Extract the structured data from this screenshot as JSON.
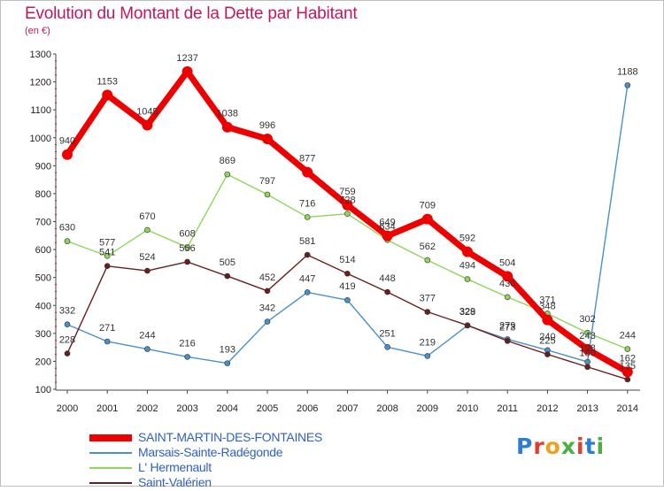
{
  "title": "Evolution du Montant de la Dette par Habitant",
  "unit": "(en €)",
  "logo_text": "Proxiti",
  "chart_data": {
    "type": "line",
    "x": [
      "2000",
      "2001",
      "2002",
      "2003",
      "2004",
      "2005",
      "2006",
      "2007",
      "2008",
      "2009",
      "2010",
      "2011",
      "2012",
      "2013",
      "2014"
    ],
    "yticks": [
      100,
      200,
      300,
      400,
      500,
      600,
      700,
      800,
      900,
      1000,
      1100,
      1200,
      1300
    ],
    "ylim": [
      100,
      1300
    ],
    "grid": false,
    "legend_position": "bottom-left",
    "series": [
      {
        "name": "SAINT-MARTIN-DES-FONTAINES",
        "color": "#ee0000",
        "values": [
          940,
          1153,
          1045,
          1237,
          1038,
          996,
          877,
          759,
          649,
          709,
          592,
          504,
          348,
          243,
          162
        ],
        "labels": [
          "940",
          "1153",
          "1045",
          "1237",
          "1038",
          "996",
          "877",
          "759",
          "649",
          "709",
          "592",
          "504",
          "348",
          "243",
          "162"
        ]
      },
      {
        "name": "Marsais-Sainte-Radégonde",
        "color": "#4a90c8",
        "values": [
          332,
          271,
          244,
          216,
          193,
          342,
          447,
          419,
          251,
          219,
          328,
          279,
          240,
          198,
          1188
        ],
        "labels": [
          "332",
          "271",
          "244",
          "216",
          "193",
          "342",
          "447",
          "419",
          "251",
          "219",
          "328",
          "279",
          "240",
          "198",
          "1188"
        ]
      },
      {
        "name": "L' Hermenault",
        "color": "#8ed65a",
        "values": [
          630,
          577,
          670,
          608,
          869,
          797,
          716,
          728,
          634,
          562,
          494,
          430,
          371,
          302,
          244
        ],
        "labels": [
          "630",
          "577",
          "670",
          "608",
          "869",
          "797",
          "716",
          "728",
          "634",
          "562",
          "494",
          "430",
          "371",
          "302",
          "244"
        ]
      },
      {
        "name": "Saint-Valérien",
        "color": "#6b1e1e",
        "values": [
          228,
          541,
          524,
          556,
          505,
          452,
          581,
          514,
          448,
          377,
          329,
          273,
          225,
          180,
          135
        ],
        "labels": [
          "228",
          "541",
          "524",
          "556",
          "505",
          "452",
          "581",
          "514",
          "448",
          "377",
          "329",
          "273",
          "225",
          "180",
          "135"
        ]
      }
    ]
  }
}
